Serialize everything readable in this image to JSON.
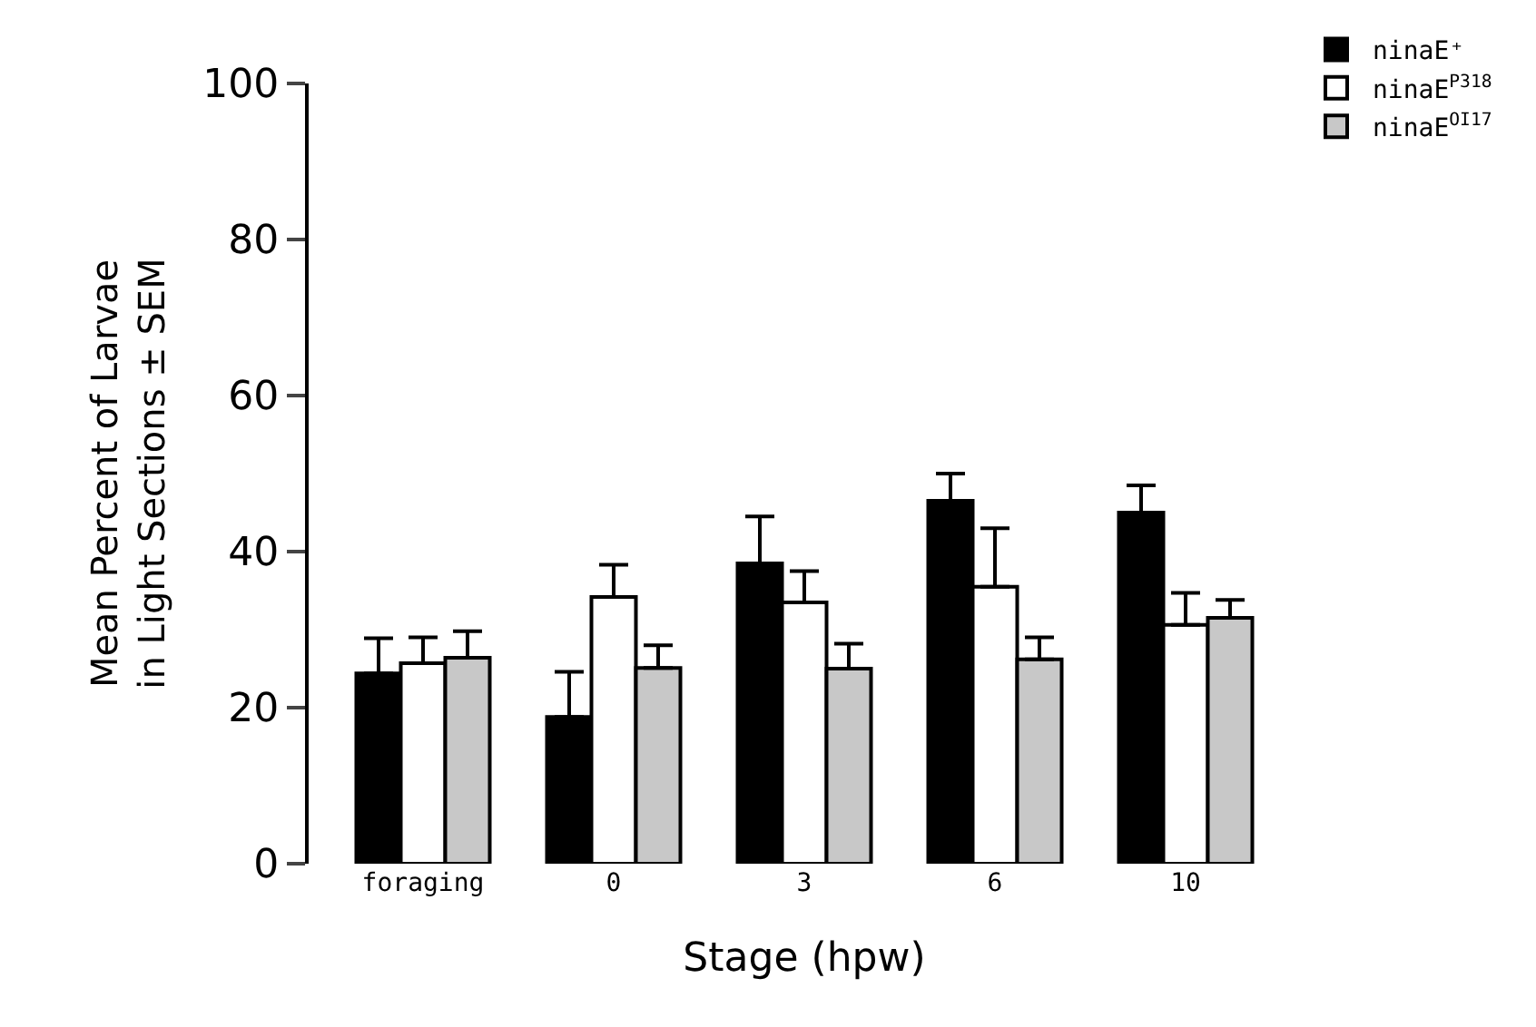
{
  "chart_data": {
    "type": "bar",
    "xlabel": "Stage (hpw)",
    "ylabel": "Mean Percent of Larvae\nin Light Sections ± SEM",
    "categories": [
      "foraging",
      "0",
      "3",
      "6",
      "10"
    ],
    "series": [
      {
        "name": "ninaE⁺",
        "color": "#000000",
        "values": [
          24.4,
          18.8,
          38.5,
          46.5,
          45
        ],
        "errors": [
          [
            24.4,
            28.9
          ],
          [
            18.8,
            24.6
          ],
          [
            38.5,
            44.5
          ],
          [
            46.5,
            50
          ],
          [
            45,
            48.5
          ]
        ]
      },
      {
        "name": "ninaE$^{P318}$",
        "color": "#ffffff",
        "values": [
          25.7,
          34.2,
          33.5,
          35.5,
          30.6
        ],
        "errors": [
          [
            25.7,
            29
          ],
          [
            34.2,
            38.3
          ],
          [
            33.5,
            37.5
          ],
          [
            35.5,
            43
          ],
          [
            30.6,
            34.7
          ]
        ]
      },
      {
        "name": "ninaE$^{OI17}$",
        "color": "#c8c8c8",
        "values": [
          26.4,
          25.1,
          25,
          26.2,
          31.5
        ],
        "errors": [
          [
            26.4,
            29.8
          ],
          [
            25.1,
            28
          ],
          [
            25,
            28.2
          ],
          [
            26.2,
            29
          ],
          [
            31.5,
            33.8
          ]
        ]
      }
    ],
    "ylim": [
      0,
      100
    ],
    "yticks": [
      0,
      20,
      40,
      60,
      80,
      100
    ],
    "legend": "top right"
  }
}
